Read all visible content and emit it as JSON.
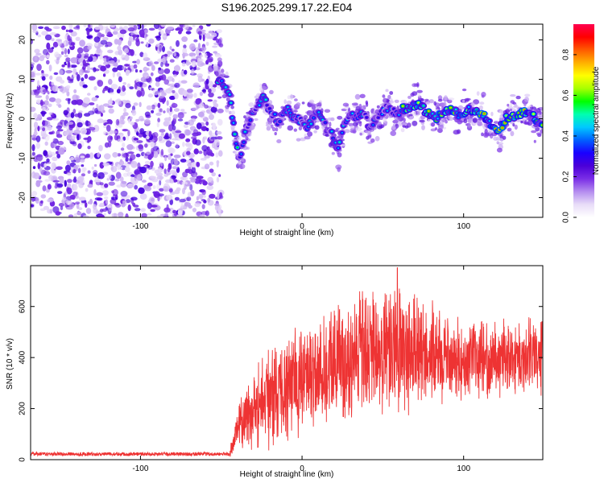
{
  "title": "S196.2025.299.17.22.E04",
  "chart_data": [
    {
      "type": "heatmap",
      "name": "spectrogram",
      "xlabel": "Height of straight line (km)",
      "ylabel": "Frequency (Hz)",
      "xlim": [
        -168,
        149
      ],
      "ylim": [
        -25,
        24
      ],
      "xticks": [
        -100,
        0,
        100
      ],
      "yticks": [
        -20,
        -10,
        0,
        10,
        20
      ],
      "xtick_labels": [
        "-100",
        "0",
        "100"
      ],
      "ytick_labels": [
        "-20",
        "-10",
        "0",
        "10",
        "20"
      ],
      "noise_region_x": [
        -168,
        -52
      ],
      "signal_track": [
        {
          "x": -52,
          "y": 9.5
        },
        {
          "x": -50,
          "y": 10
        },
        {
          "x": -47,
          "y": 8
        },
        {
          "x": -45,
          "y": 6
        },
        {
          "x": -43,
          "y": 0
        },
        {
          "x": -41,
          "y": -6
        },
        {
          "x": -39,
          "y": -10
        },
        {
          "x": -37,
          "y": -8
        },
        {
          "x": -35,
          "y": -3
        },
        {
          "x": -33,
          "y": -2
        },
        {
          "x": -31,
          "y": 1
        },
        {
          "x": -29,
          "y": 2
        },
        {
          "x": -27,
          "y": 4
        },
        {
          "x": -24,
          "y": 5.5
        },
        {
          "x": -21,
          "y": 3
        },
        {
          "x": -18,
          "y": 1
        },
        {
          "x": -15,
          "y": -1
        },
        {
          "x": -12,
          "y": 1
        },
        {
          "x": -9,
          "y": 3
        },
        {
          "x": -6,
          "y": 1
        },
        {
          "x": -3,
          "y": 0
        },
        {
          "x": 0,
          "y": -1
        },
        {
          "x": 3,
          "y": -3
        },
        {
          "x": 6,
          "y": 0
        },
        {
          "x": 10,
          "y": 2
        },
        {
          "x": 14,
          "y": -1
        },
        {
          "x": 18,
          "y": -4
        },
        {
          "x": 22,
          "y": -7
        },
        {
          "x": 26,
          "y": -2
        },
        {
          "x": 30,
          "y": 1
        },
        {
          "x": 34,
          "y": 0
        },
        {
          "x": 38,
          "y": 2
        },
        {
          "x": 42,
          "y": -2
        },
        {
          "x": 46,
          "y": 0
        },
        {
          "x": 50,
          "y": 2
        },
        {
          "x": 54,
          "y": 3
        },
        {
          "x": 58,
          "y": 1
        },
        {
          "x": 62,
          "y": 2
        },
        {
          "x": 66,
          "y": 2.5
        },
        {
          "x": 70,
          "y": 4
        },
        {
          "x": 74,
          "y": 3
        },
        {
          "x": 78,
          "y": 1.5
        },
        {
          "x": 82,
          "y": 0.5
        },
        {
          "x": 86,
          "y": 1
        },
        {
          "x": 90,
          "y": 2
        },
        {
          "x": 94,
          "y": 1.5
        },
        {
          "x": 98,
          "y": 1
        },
        {
          "x": 102,
          "y": 2
        },
        {
          "x": 106,
          "y": 1.5
        },
        {
          "x": 110,
          "y": 1
        },
        {
          "x": 114,
          "y": 0
        },
        {
          "x": 118,
          "y": -2
        },
        {
          "x": 122,
          "y": -3
        },
        {
          "x": 126,
          "y": 0
        },
        {
          "x": 130,
          "y": 0.5
        },
        {
          "x": 134,
          "y": 1
        },
        {
          "x": 138,
          "y": 2
        },
        {
          "x": 142,
          "y": 1
        },
        {
          "x": 146,
          "y": -1
        },
        {
          "x": 149,
          "y": -1
        }
      ]
    },
    {
      "type": "colorbar",
      "name": "normalized-amplitude-colorbar",
      "label": "Normalized spectral amplitude",
      "range": [
        0,
        0.95
      ],
      "ticks": [
        0.0,
        0.2,
        0.4,
        0.6,
        0.8
      ],
      "tick_labels": [
        "0.0",
        "0.2",
        "0.4",
        "0.6",
        "0.8"
      ],
      "colors": [
        "#ffffff",
        "#e8dcf8",
        "#b48cef",
        "#7a2ee6",
        "#4b00d8",
        "#1a00ff",
        "#0060ff",
        "#00c8ff",
        "#00ffb0",
        "#00ff00",
        "#a8ff00",
        "#ffff00",
        "#ffb000",
        "#ff5a00",
        "#ff0000",
        "#ff0050"
      ]
    },
    {
      "type": "line",
      "name": "snr-trace",
      "xlabel": "Height of straight line (km)",
      "ylabel": "SNR (10 * v/v)",
      "xlim": [
        -168,
        149
      ],
      "ylim": [
        0,
        760
      ],
      "xticks": [
        -100,
        0,
        100
      ],
      "yticks": [
        0,
        200,
        400,
        600
      ],
      "xtick_labels": [
        "-100",
        "0",
        "100"
      ],
      "ytick_labels": [
        "0",
        "200",
        "400",
        "600"
      ],
      "color": "#ee3333",
      "envelope": [
        {
          "x": -168,
          "mean": 22,
          "spread": 14
        },
        {
          "x": -45,
          "mean": 22,
          "spread": 14
        },
        {
          "x": -38,
          "mean": 150,
          "spread": 180
        },
        {
          "x": -30,
          "mean": 200,
          "spread": 250
        },
        {
          "x": -20,
          "mean": 250,
          "spread": 300
        },
        {
          "x": 0,
          "mean": 320,
          "spread": 330
        },
        {
          "x": 30,
          "mean": 410,
          "spread": 380
        },
        {
          "x": 60,
          "mean": 420,
          "spread": 400
        },
        {
          "x": 80,
          "mean": 410,
          "spread": 300
        },
        {
          "x": 100,
          "mean": 390,
          "spread": 220
        },
        {
          "x": 120,
          "mean": 400,
          "spread": 220
        },
        {
          "x": 149,
          "mean": 410,
          "spread": 220
        }
      ],
      "peak": {
        "x": 59,
        "y": 752
      }
    }
  ]
}
